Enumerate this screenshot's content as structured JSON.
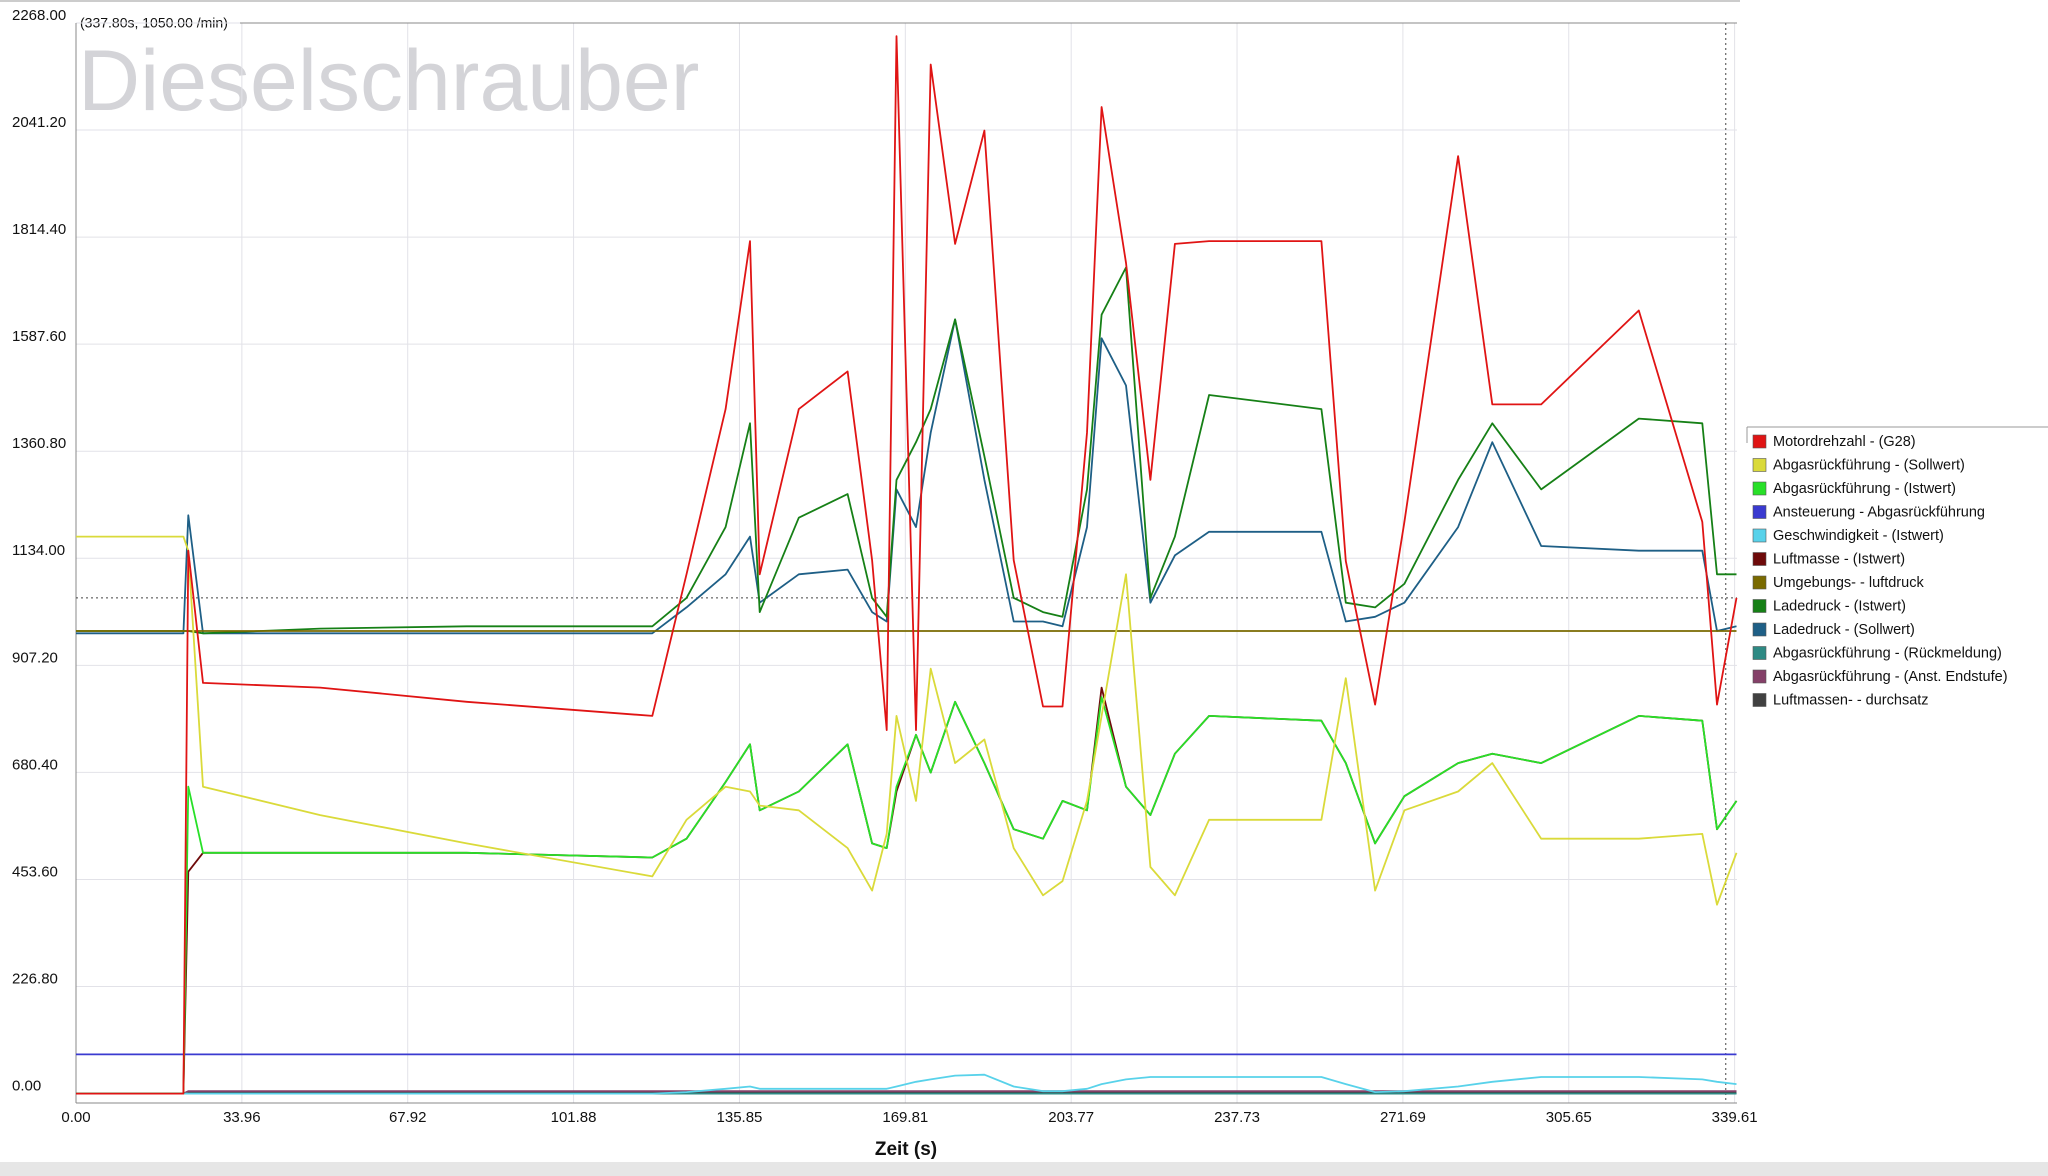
{
  "chart_data": {
    "type": "line",
    "watermark": "Dieselschrauber",
    "annotation": "(337.80s, 1050.00 /min)",
    "cursor_x": 337.8,
    "cursor_y": 1050,
    "x_label": "Zeit (s)",
    "grid": true,
    "legend": "right",
    "xlim": [
      0,
      340.1
    ],
    "ylim": [
      -20,
      2268
    ],
    "xticks": [
      {
        "value": 0,
        "label": "0.00"
      },
      {
        "value": 33.96,
        "label": "33.96"
      },
      {
        "value": 67.92,
        "label": "67.92"
      },
      {
        "value": 101.88,
        "label": "101.88"
      },
      {
        "value": 135.85,
        "label": "135.85"
      },
      {
        "value": 169.81,
        "label": "169.81"
      },
      {
        "value": 203.77,
        "label": "203.77"
      },
      {
        "value": 237.73,
        "label": "237.73"
      },
      {
        "value": 271.69,
        "label": "271.69"
      },
      {
        "value": 305.65,
        "label": "305.65"
      },
      {
        "value": 339.61,
        "label": "339.61"
      }
    ],
    "yticks": [
      {
        "value": 0,
        "label": "0.00"
      },
      {
        "value": 226.8,
        "label": "226.80"
      },
      {
        "value": 453.6,
        "label": "453.60"
      },
      {
        "value": 680.4,
        "label": "680.40"
      },
      {
        "value": 907.2,
        "label": "907.20"
      },
      {
        "value": 1134,
        "label": "1134.00"
      },
      {
        "value": 1360.8,
        "label": "1360.80"
      },
      {
        "value": 1587.6,
        "label": "1587.60"
      },
      {
        "value": 1814.4,
        "label": "1814.40"
      },
      {
        "value": 2041.2,
        "label": "2041.20"
      },
      {
        "value": 2268,
        "label": "2268.00"
      }
    ],
    "x": [
      0,
      20,
      22,
      23,
      26,
      50,
      80,
      118,
      125,
      133,
      138,
      140,
      148,
      158,
      163,
      166,
      168,
      172,
      175,
      180,
      186,
      192,
      198,
      202,
      207,
      210,
      215,
      220,
      225,
      232,
      255,
      260,
      266,
      272,
      283,
      290,
      300,
      320,
      333,
      336,
      340
    ],
    "series": [
      {
        "name": "Motordrehzahl - (G28)",
        "color": "#e01414",
        "values": [
          0,
          0,
          0,
          1150,
          870,
          860,
          830,
          800,
          1100,
          1450,
          1806,
          1100,
          1450,
          1530,
          1130,
          770,
          2240,
          770,
          2180,
          1800,
          2040,
          1130,
          820,
          820,
          1400,
          2090,
          1760,
          1300,
          1800,
          1806,
          1806,
          1128,
          824,
          1211,
          1986,
          1460,
          1460,
          1659,
          1211,
          824,
          1050
        ]
      },
      {
        "name": "Abgasrückführung - (Sollwert)",
        "color": "#dada3a",
        "values": [
          1180,
          1180,
          1180,
          1150,
          650,
          590,
          530,
          460,
          580,
          650,
          640,
          610,
          600,
          520,
          430,
          550,
          800,
          620,
          900,
          700,
          750,
          520,
          420,
          450,
          620,
          800,
          1100,
          480,
          420,
          580,
          580,
          880,
          430,
          600,
          640,
          700,
          540,
          540,
          550,
          400,
          510
        ]
      },
      {
        "name": "Abgasrückführung - (Istwert)",
        "color": "#28e028",
        "values": [
          0,
          0,
          0,
          650,
          510,
          510,
          510,
          500,
          540,
          660,
          740,
          600,
          640,
          740,
          530,
          520,
          650,
          760,
          680,
          830,
          700,
          560,
          540,
          620,
          600,
          840,
          650,
          590,
          720,
          800,
          790,
          700,
          530,
          630,
          700,
          720,
          700,
          800,
          790,
          560,
          620
        ]
      },
      {
        "name": "Ansteuerung - Abgasrückführung",
        "color": "#3a3ad0",
        "values": [
          83,
          83,
          83,
          83,
          83,
          83,
          83,
          83,
          83,
          83,
          83,
          83,
          83,
          83,
          83,
          83,
          83,
          83,
          83,
          83,
          83,
          83,
          83,
          83,
          83,
          83,
          83,
          83,
          83,
          83,
          83,
          83,
          83,
          83,
          83,
          83,
          83,
          83,
          83,
          83,
          83
        ]
      },
      {
        "name": "Geschwindigkeit - (Istwert)",
        "color": "#58d2ea",
        "values": [
          0,
          0,
          0,
          0,
          0,
          0,
          0,
          0,
          3,
          10,
          15,
          10,
          10,
          10,
          10,
          10,
          15,
          25,
          30,
          38,
          40,
          15,
          5,
          5,
          10,
          20,
          30,
          35,
          35,
          35,
          35,
          20,
          3,
          5,
          15,
          25,
          35,
          35,
          30,
          25,
          20
        ]
      },
      {
        "name": "Luftmasse - (Istwert)",
        "color": "#6e0a0a",
        "values": [
          0,
          0,
          0,
          470,
          510,
          510,
          510,
          500,
          540,
          660,
          740,
          600,
          640,
          740,
          530,
          520,
          640,
          760,
          680,
          830,
          700,
          560,
          540,
          620,
          600,
          860,
          650,
          590,
          720,
          800,
          790,
          700,
          530,
          630,
          700,
          720,
          700,
          800,
          790,
          560,
          620
        ]
      },
      {
        "name": "Umgebungs- - luftdruck",
        "color": "#7a6a00",
        "values": [
          980,
          980,
          980,
          980,
          980,
          980,
          980,
          980,
          980,
          980,
          980,
          980,
          980,
          980,
          980,
          980,
          980,
          980,
          980,
          980,
          980,
          980,
          980,
          980,
          980,
          980,
          980,
          980,
          980,
          980,
          980,
          980,
          980,
          980,
          980,
          980,
          980,
          980,
          980,
          980,
          980
        ]
      },
      {
        "name": "Ladedruck - (Istwert)",
        "color": "#168016",
        "values": [
          980,
          980,
          980,
          980,
          975,
          985,
          990,
          990,
          1050,
          1200,
          1420,
          1020,
          1220,
          1270,
          1050,
          1010,
          1300,
          1380,
          1450,
          1640,
          1350,
          1050,
          1020,
          1010,
          1280,
          1650,
          1750,
          1050,
          1180,
          1480,
          1450,
          1040,
          1030,
          1080,
          1300,
          1420,
          1280,
          1430,
          1420,
          1100,
          1100
        ]
      },
      {
        "name": "Ladedruck - (Sollwert)",
        "color": "#1e5f86",
        "values": [
          975,
          975,
          975,
          1225,
          975,
          975,
          975,
          975,
          1030,
          1100,
          1180,
          1040,
          1100,
          1110,
          1020,
          1000,
          1280,
          1200,
          1400,
          1640,
          1300,
          1000,
          1000,
          990,
          1200,
          1600,
          1500,
          1040,
          1140,
          1190,
          1190,
          1000,
          1010,
          1040,
          1200,
          1380,
          1160,
          1150,
          1150,
          980,
          990
        ]
      },
      {
        "name": "Abgasrückführung - (Rückmeldung)",
        "color": "#2e8a84",
        "values": [
          0,
          0,
          0,
          0,
          0,
          0,
          0,
          0,
          0,
          0,
          0,
          0,
          0,
          0,
          0,
          0,
          0,
          0,
          0,
          0,
          0,
          0,
          0,
          0,
          0,
          0,
          0,
          0,
          0,
          0,
          0,
          0,
          0,
          0,
          0,
          0,
          0,
          0,
          0,
          0,
          0
        ]
      },
      {
        "name": "Abgasrückführung - (Anst. Endstufe)",
        "color": "#844068",
        "values": [
          0,
          0,
          0,
          5,
          5,
          5,
          5,
          5,
          5,
          5,
          5,
          5,
          5,
          5,
          5,
          5,
          5,
          5,
          5,
          5,
          5,
          5,
          5,
          5,
          5,
          5,
          5,
          5,
          5,
          5,
          5,
          5,
          5,
          5,
          5,
          5,
          5,
          5,
          5,
          5,
          5
        ]
      },
      {
        "name": "Luftmassen- - durchsatz",
        "color": "#404040",
        "values": [
          0,
          0,
          0,
          3,
          3,
          3,
          3,
          3,
          3,
          3,
          3,
          3,
          3,
          3,
          3,
          3,
          3,
          3,
          3,
          3,
          3,
          3,
          3,
          3,
          3,
          3,
          3,
          3,
          3,
          3,
          3,
          3,
          3,
          3,
          3,
          3,
          3,
          3,
          3,
          3,
          3
        ]
      }
    ]
  }
}
